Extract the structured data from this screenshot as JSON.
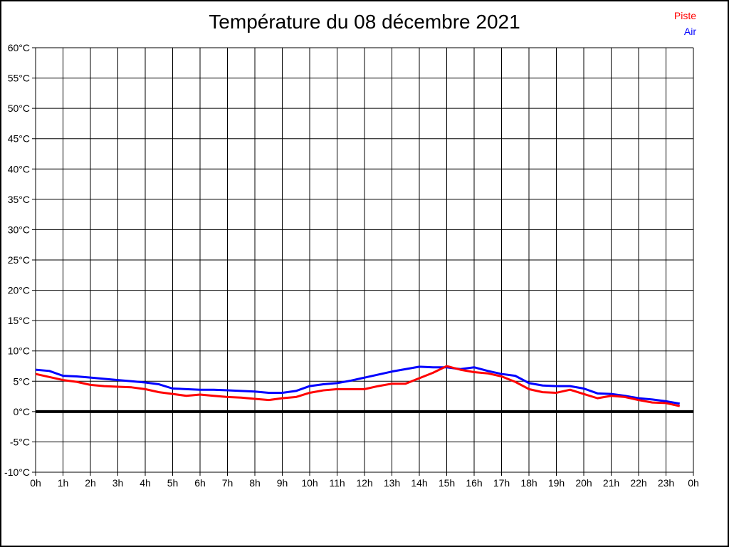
{
  "title": "Température du 08 décembre 2021",
  "legend": {
    "position": "top-right",
    "items": [
      {
        "label": "Piste",
        "color": "#ff0000"
      },
      {
        "label": "Air",
        "color": "#0000ff"
      }
    ]
  },
  "colors": {
    "piste_line": "#ff0000",
    "air_line": "#0000ff",
    "grid": "#000000",
    "zero_line": "#000000",
    "background": "#ffffff",
    "text": "#000000"
  },
  "chart_data": {
    "type": "line",
    "title": "Température du 08 décembre 2021",
    "xlabel": "",
    "ylabel": "",
    "xlim": [
      0,
      24
    ],
    "ylim": [
      -10,
      60
    ],
    "grid": true,
    "unit": "°C",
    "x_ticks": [
      0,
      1,
      2,
      3,
      4,
      5,
      6,
      7,
      8,
      9,
      10,
      11,
      12,
      13,
      14,
      15,
      16,
      17,
      18,
      19,
      20,
      21,
      22,
      23,
      24
    ],
    "x_tick_labels": [
      "0h",
      "1h",
      "2h",
      "3h",
      "4h",
      "5h",
      "6h",
      "7h",
      "8h",
      "9h",
      "10h",
      "11h",
      "12h",
      "13h",
      "14h",
      "15h",
      "16h",
      "17h",
      "18h",
      "19h",
      "20h",
      "21h",
      "22h",
      "23h",
      "0h"
    ],
    "y_ticks": [
      -10,
      -5,
      0,
      5,
      10,
      15,
      20,
      25,
      30,
      35,
      40,
      45,
      50,
      55,
      60
    ],
    "y_tick_labels": [
      "-10°C",
      "-5°C",
      "0°C",
      "5°C",
      "10°C",
      "15°C",
      "20°C",
      "25°C",
      "30°C",
      "35°C",
      "40°C",
      "45°C",
      "50°C",
      "55°C",
      "60°C"
    ],
    "x": [
      0,
      0.5,
      1,
      1.5,
      2,
      2.5,
      3,
      3.5,
      4,
      4.5,
      5,
      5.5,
      6,
      6.5,
      7,
      7.5,
      8,
      8.5,
      9,
      9.5,
      10,
      10.5,
      11,
      11.5,
      12,
      12.5,
      13,
      13.5,
      14,
      14.5,
      15,
      15.5,
      16,
      16.5,
      17,
      17.5,
      18,
      18.5,
      19,
      19.5,
      20,
      20.5,
      21,
      21.5,
      22,
      22.5,
      23,
      23.5
    ],
    "series": [
      {
        "name": "Air",
        "color": "#0000ff",
        "values": [
          6.9,
          6.7,
          5.9,
          5.8,
          5.6,
          5.4,
          5.2,
          5.0,
          4.8,
          4.5,
          3.8,
          3.7,
          3.6,
          3.6,
          3.5,
          3.4,
          3.3,
          3.1,
          3.1,
          3.4,
          4.2,
          4.5,
          4.7,
          5.1,
          5.6,
          6.1,
          6.6,
          7.0,
          7.4,
          7.3,
          7.3,
          7.0,
          7.3,
          6.7,
          6.2,
          5.9,
          4.7,
          4.3,
          4.2,
          4.2,
          3.8,
          3.0,
          2.9,
          2.6,
          2.2,
          2.0,
          1.7,
          1.3
        ]
      },
      {
        "name": "Piste",
        "color": "#ff0000",
        "values": [
          6.2,
          5.7,
          5.2,
          4.9,
          4.4,
          4.2,
          4.1,
          4.0,
          3.7,
          3.2,
          2.9,
          2.6,
          2.8,
          2.6,
          2.4,
          2.3,
          2.1,
          1.9,
          2.2,
          2.4,
          3.1,
          3.5,
          3.7,
          3.7,
          3.7,
          4.2,
          4.6,
          4.6,
          5.5,
          6.4,
          7.5,
          6.9,
          6.5,
          6.3,
          5.8,
          4.9,
          3.7,
          3.2,
          3.1,
          3.6,
          2.9,
          2.2,
          2.6,
          2.4,
          1.9,
          1.5,
          1.4,
          0.9
        ]
      }
    ]
  }
}
